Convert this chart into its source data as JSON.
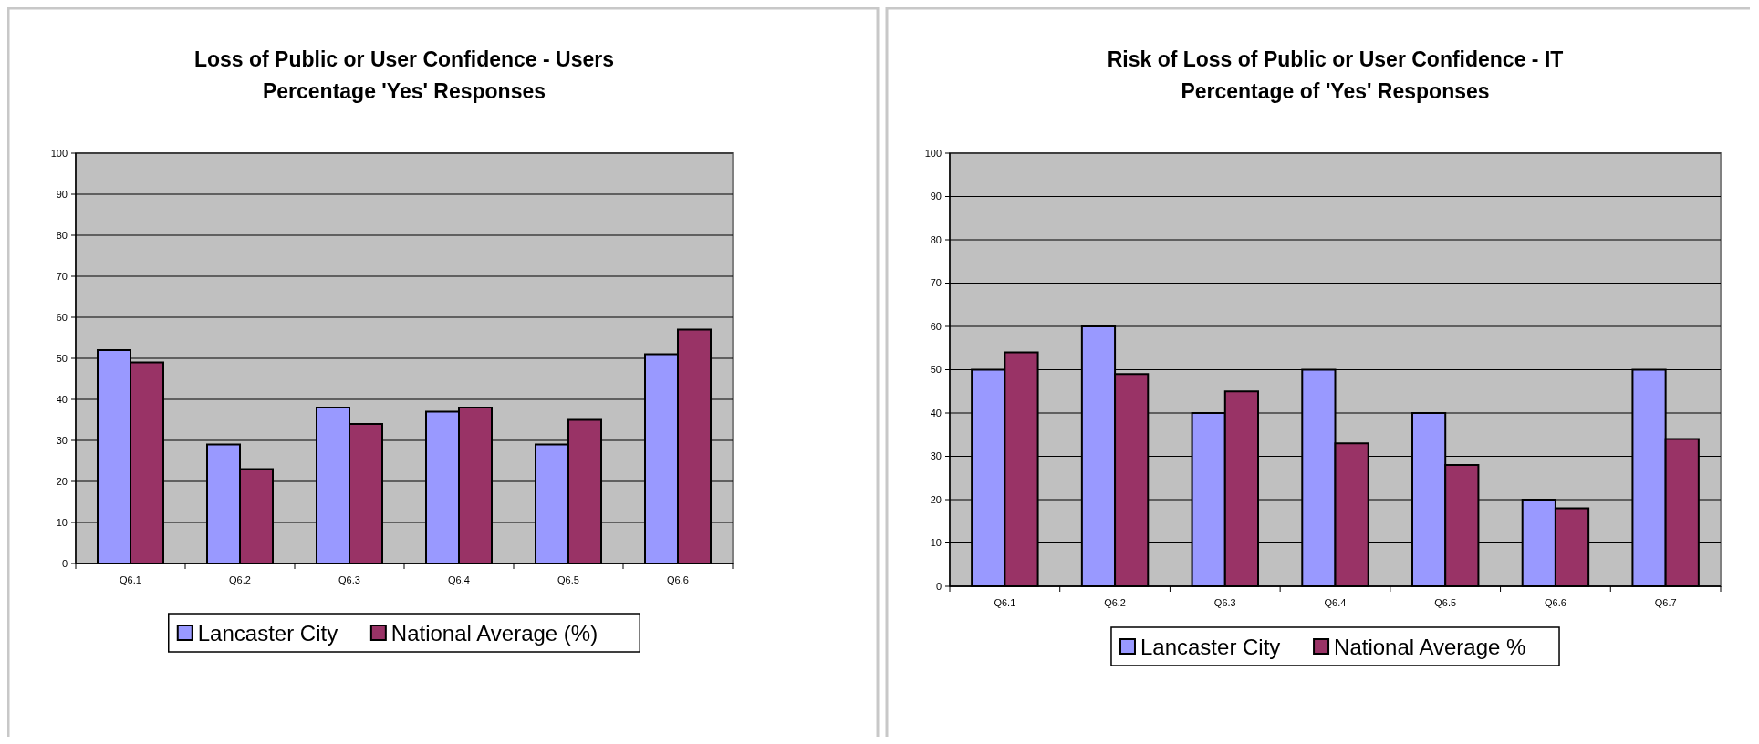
{
  "chart_data": [
    {
      "type": "bar",
      "title": "Loss of Public or User Confidence - Users",
      "subtitle": "Percentage 'Yes' Responses",
      "categories": [
        "Q6.1",
        "Q6.2",
        "Q6.3",
        "Q6.4",
        "Q6.5",
        "Q6.6"
      ],
      "series": [
        {
          "name": "Lancaster City",
          "color": "#9999ff",
          "values": [
            52,
            29,
            38,
            37,
            29,
            51
          ]
        },
        {
          "name": "National Average (%)",
          "color": "#993366",
          "values": [
            49,
            23,
            34,
            38,
            35,
            57
          ]
        }
      ],
      "ylim": [
        0,
        100
      ],
      "yticks": [
        0,
        10,
        20,
        30,
        40,
        50,
        60,
        70,
        80,
        90,
        100
      ],
      "grid": "y",
      "legend": "bottom"
    },
    {
      "type": "bar",
      "title": "Risk of Loss of Public or User Confidence - IT",
      "subtitle": "Percentage of 'Yes' Responses",
      "categories": [
        "Q6.1",
        "Q6.2",
        "Q6.3",
        "Q6.4",
        "Q6.5",
        "Q6.6",
        "Q6.7"
      ],
      "series": [
        {
          "name": "Lancaster City",
          "color": "#9999ff",
          "values": [
            50,
            60,
            40,
            50,
            40,
            20,
            50
          ]
        },
        {
          "name": "National Average %",
          "color": "#993366",
          "values": [
            54,
            49,
            45,
            33,
            28,
            18,
            34
          ]
        }
      ],
      "ylim": [
        0,
        100
      ],
      "yticks": [
        0,
        10,
        20,
        30,
        40,
        50,
        60,
        70,
        80,
        90,
        100
      ],
      "grid": "y",
      "legend": "bottom"
    }
  ]
}
